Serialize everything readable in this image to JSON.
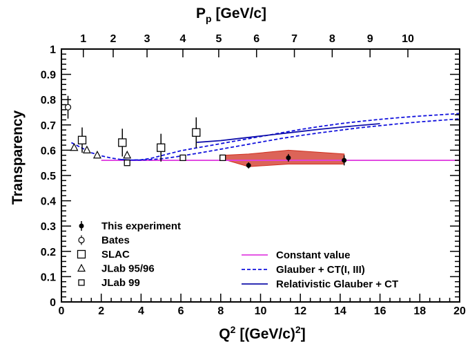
{
  "chart_data": {
    "type": "scatter",
    "xlabel": "Q",
    "xlabel_sup": "2",
    "xlabel_unit": "[(GeV/c)",
    "xlabel_unit_sup": "2",
    "xlabel_unit_end": "]",
    "ylabel": "Transparency",
    "top_label": "P",
    "top_label_sub": "p",
    "top_label_unit": "[GeV/c]",
    "xlim": [
      0,
      20
    ],
    "ylim": [
      0,
      1
    ],
    "x_ticks": [
      "0",
      "2",
      "4",
      "6",
      "8",
      "10",
      "12",
      "14",
      "16",
      "18",
      "20"
    ],
    "y_ticks": [
      "0",
      "0.1",
      "0.2",
      "0.3",
      "0.4",
      "0.5",
      "0.6",
      "0.7",
      "0.8",
      "0.9",
      "1"
    ],
    "top_ticks": [
      {
        "label": "1",
        "q2": 1.1
      },
      {
        "label": "2",
        "q2": 2.6
      },
      {
        "label": "3",
        "q2": 4.3
      },
      {
        "label": "4",
        "q2": 6.1
      },
      {
        "label": "5",
        "q2": 7.9
      },
      {
        "label": "6",
        "q2": 9.8
      },
      {
        "label": "7",
        "q2": 11.7
      },
      {
        "label": "8",
        "q2": 13.6
      },
      {
        "label": "9",
        "q2": 15.5
      },
      {
        "label": "10",
        "q2": 17.4
      }
    ],
    "grid": false,
    "legend_left": [
      {
        "label": "This experiment",
        "marker": "filled-circle"
      },
      {
        "label": "Bates",
        "marker": "open-circle"
      },
      {
        "label": "SLAC",
        "marker": "open-square-large"
      },
      {
        "label": "JLab 95/96",
        "marker": "open-triangle"
      },
      {
        "label": "JLab 99",
        "marker": "open-square-small"
      }
    ],
    "legend_right": [
      {
        "label": "Constant value",
        "color": "#e040e0",
        "style": "solid"
      },
      {
        "label": "Glauber + CT(I, III)",
        "color": "#1010dd",
        "style": "dashed"
      },
      {
        "label": "Relativistic Glauber + CT",
        "color": "#1010aa",
        "style": "solid"
      }
    ],
    "series": [
      {
        "name": "This experiment",
        "marker": "filled-circle",
        "points": [
          {
            "x": 8.1,
            "y": 0.57,
            "err": 0.012
          },
          {
            "x": 9.4,
            "y": 0.54,
            "err": 0.012
          },
          {
            "x": 11.4,
            "y": 0.57,
            "err": 0.015
          },
          {
            "x": 14.2,
            "y": 0.56,
            "err": 0.02
          }
        ]
      },
      {
        "name": "Bates",
        "marker": "open-circle",
        "points": [
          {
            "x": 0.33,
            "y": 0.77,
            "err": 0.045
          }
        ]
      },
      {
        "name": "SLAC",
        "marker": "open-square-large",
        "points": [
          {
            "x": 1.04,
            "y": 0.64,
            "err": 0.05
          },
          {
            "x": 3.06,
            "y": 0.63,
            "err": 0.055
          },
          {
            "x": 5.0,
            "y": 0.61,
            "err": 0.055
          },
          {
            "x": 6.77,
            "y": 0.67,
            "err": 0.06
          }
        ]
      },
      {
        "name": "JLab 95/96",
        "marker": "open-triangle",
        "points": [
          {
            "x": 0.64,
            "y": 0.61,
            "err": 0.0
          },
          {
            "x": 1.28,
            "y": 0.6,
            "err": 0.0
          },
          {
            "x": 1.8,
            "y": 0.58,
            "err": 0.0
          },
          {
            "x": 3.3,
            "y": 0.58,
            "err": 0.0
          }
        ]
      },
      {
        "name": "JLab 99",
        "marker": "open-square-small",
        "points": [
          {
            "x": 3.3,
            "y": 0.55,
            "err": 0.01
          },
          {
            "x": 6.1,
            "y": 0.57,
            "err": 0.01
          },
          {
            "x": 8.1,
            "y": 0.57,
            "err": 0.01
          }
        ]
      }
    ],
    "band": {
      "name": "This experiment systematic band",
      "color": "#d03020",
      "x": [
        8.1,
        9.4,
        11.4,
        14.2
      ],
      "upper": [
        0.58,
        0.585,
        0.6,
        0.585
      ],
      "lower": [
        0.565,
        0.535,
        0.545,
        0.545
      ]
    },
    "curves": [
      {
        "name": "Constant value",
        "color": "#e040e0",
        "style": "solid",
        "x": [
          2,
          20
        ],
        "y": [
          0.56,
          0.56
        ]
      },
      {
        "name": "Glauber + CT(I, III) upper",
        "color": "#1010dd",
        "style": "dashed",
        "x": [
          0.5,
          1.0,
          1.5,
          2.0,
          2.5,
          3.0,
          3.5,
          4.0,
          4.5,
          5.0,
          5.5,
          6.0,
          7.0,
          8.0,
          9.0,
          10.0,
          11.0,
          12.0,
          13.0,
          14.0,
          15.0,
          16.0,
          17.0,
          18.0,
          19.0,
          20.0
        ],
        "y": [
          0.63,
          0.61,
          0.59,
          0.578,
          0.569,
          0.563,
          0.561,
          0.562,
          0.568,
          0.578,
          0.588,
          0.598,
          0.612,
          0.626,
          0.64,
          0.654,
          0.668,
          0.682,
          0.694,
          0.705,
          0.714,
          0.722,
          0.729,
          0.735,
          0.74,
          0.745
        ]
      },
      {
        "name": "Glauber + CT(I, III) lower",
        "color": "#1010dd",
        "style": "dashed",
        "x": [
          3.0,
          3.5,
          4.0,
          4.5,
          5.0,
          5.5,
          6.0,
          7.0,
          8.0,
          9.0,
          10.0,
          11.0,
          12.0,
          13.0,
          14.0,
          15.0,
          16.0,
          17.0,
          18.0,
          19.0,
          20.0
        ],
        "y": [
          0.563,
          0.561,
          0.561,
          0.563,
          0.566,
          0.571,
          0.577,
          0.59,
          0.604,
          0.618,
          0.632,
          0.646,
          0.658,
          0.669,
          0.679,
          0.689,
          0.697,
          0.705,
          0.712,
          0.718,
          0.724
        ]
      },
      {
        "name": "Relativistic Glauber + CT",
        "color": "#1010aa",
        "style": "solid",
        "x": [
          6.8,
          8.0,
          9.0,
          10.0,
          11.0,
          12.0,
          13.0,
          14.0,
          15.0,
          16.0
        ],
        "y": [
          0.631,
          0.638,
          0.647,
          0.656,
          0.665,
          0.674,
          0.683,
          0.691,
          0.698,
          0.705
        ]
      }
    ]
  }
}
